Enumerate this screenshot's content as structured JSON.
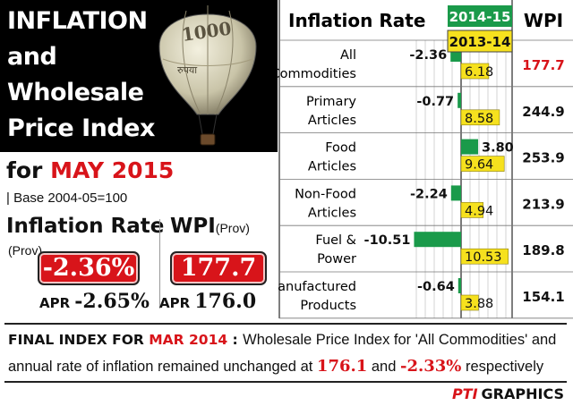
{
  "title_lines": [
    "INFLATION",
    "and",
    "Wholesale",
    "Price Index"
  ],
  "balloon_text": "रुपया",
  "period": {
    "prefix": "for",
    "month_year": "MAY 2015"
  },
  "base_note": "| Base 2004-05=100",
  "inflation": {
    "title": "Inflation Rate",
    "prov": "(Prov)",
    "value": "-2.36%",
    "apr_label": "APR",
    "apr_value": "-2.65%"
  },
  "wpi": {
    "title": "WPI",
    "prov": "(Prov)",
    "value": "177.7",
    "apr_label": "APR",
    "apr_value": "176.0"
  },
  "chart_data": {
    "type": "bar",
    "title": "Inflation Rate",
    "wpi_header": "WPI",
    "categories": [
      {
        "lines": [
          "All",
          "Commodities"
        ]
      },
      {
        "lines": [
          "Primary",
          "Articles"
        ]
      },
      {
        "lines": [
          "Food",
          "Articles"
        ]
      },
      {
        "lines": [
          "Non-Food",
          "Articles"
        ]
      },
      {
        "lines": [
          "Fuel &",
          "Power"
        ]
      },
      {
        "lines": [
          "Manufactured",
          "Products"
        ]
      }
    ],
    "series": [
      {
        "name": "2014-15",
        "color": "#1a9a4a",
        "values": [
          -2.36,
          -0.77,
          3.8,
          -2.24,
          -10.51,
          -0.64
        ],
        "labels": [
          "-2.36",
          "-0.77",
          "3.80",
          "-2.24",
          "-10.51",
          "-0.64"
        ]
      },
      {
        "name": "2013-14",
        "color": "#f6e11e",
        "values": [
          6.18,
          8.58,
          9.64,
          4.94,
          10.53,
          3.88
        ],
        "labels": [
          "6.18",
          "8.58",
          "9.64",
          "4.94",
          "10.53",
          "3.88"
        ]
      }
    ],
    "wpi_values": [
      "177.7",
      "244.9",
      "253.9",
      "213.9",
      "189.8",
      "154.1"
    ],
    "xlim": [
      -10.6,
      11.0
    ],
    "grid": true
  },
  "footer": {
    "heading_prefix": "FINAL INDEX FOR",
    "heading_month": "MAR 2014",
    "colon": " : ",
    "text1": "Wholesale Price Index for 'All Commodities' and annual rate of inflation remained unchanged at ",
    "num1": "176.1",
    "text2": " and ",
    "num2": "-2.33%",
    "text3": " respectively"
  },
  "credit": {
    "pti": "PTI",
    "graphics": "GRAPHICS"
  },
  "colors": {
    "accent_red": "#d8141a",
    "green": "#1a9a4a",
    "yellow": "#f6e11e",
    "black": "#000000"
  }
}
